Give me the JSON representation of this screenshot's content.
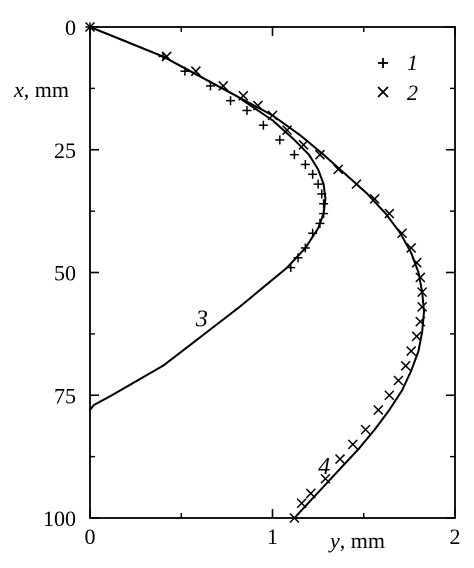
{
  "chart_data": {
    "type": "scatter",
    "x_axis": {
      "label_var": "y",
      "label_unit": ", mm",
      "range": [
        0,
        2
      ],
      "ticks": [
        "0",
        "1",
        "2"
      ],
      "tick_values": [
        0,
        1,
        2
      ]
    },
    "y_axis": {
      "label_var": "x",
      "label_unit": ", mm",
      "range": [
        0,
        100
      ],
      "inverted": true,
      "ticks": [
        "0",
        "25",
        "50",
        "75",
        "100"
      ],
      "tick_values": [
        0,
        25,
        50,
        75,
        100
      ]
    },
    "grid": false,
    "legend_position": "top-right",
    "legend": [
      {
        "marker": "+",
        "label": "1"
      },
      {
        "marker": "×",
        "label": "2"
      }
    ],
    "series": [
      {
        "name": "1",
        "kind": "markers",
        "marker": "+",
        "points": [
          [
            0.0,
            0
          ],
          [
            0.4,
            6
          ],
          [
            0.52,
            9
          ],
          [
            0.66,
            12
          ],
          [
            0.77,
            15
          ],
          [
            0.86,
            17
          ],
          [
            0.95,
            20
          ],
          [
            1.04,
            23
          ],
          [
            1.12,
            26
          ],
          [
            1.18,
            28
          ],
          [
            1.22,
            30
          ],
          [
            1.25,
            32
          ],
          [
            1.27,
            34
          ],
          [
            1.28,
            36
          ],
          [
            1.28,
            38
          ],
          [
            1.26,
            40
          ],
          [
            1.22,
            42
          ],
          [
            1.18,
            45
          ],
          [
            1.14,
            47
          ],
          [
            1.1,
            49
          ]
        ]
      },
      {
        "name": "2",
        "kind": "markers",
        "marker": "×",
        "points": [
          [
            0.0,
            0
          ],
          [
            0.42,
            6
          ],
          [
            0.58,
            9
          ],
          [
            0.73,
            12
          ],
          [
            0.84,
            14
          ],
          [
            0.92,
            16
          ],
          [
            1.0,
            18
          ],
          [
            1.08,
            21
          ],
          [
            1.17,
            24
          ],
          [
            1.26,
            26
          ],
          [
            1.36,
            29
          ],
          [
            1.46,
            32
          ],
          [
            1.56,
            35
          ],
          [
            1.64,
            38
          ],
          [
            1.71,
            42
          ],
          [
            1.76,
            45
          ],
          [
            1.79,
            48
          ],
          [
            1.81,
            51
          ],
          [
            1.82,
            54
          ],
          [
            1.82,
            57
          ],
          [
            1.81,
            60
          ],
          [
            1.79,
            63
          ],
          [
            1.76,
            66
          ],
          [
            1.73,
            69
          ],
          [
            1.69,
            72
          ],
          [
            1.64,
            75
          ],
          [
            1.58,
            78
          ],
          [
            1.51,
            82
          ],
          [
            1.44,
            85
          ],
          [
            1.37,
            88
          ],
          [
            1.29,
            92
          ],
          [
            1.21,
            95
          ],
          [
            1.16,
            97
          ],
          [
            1.12,
            100
          ]
        ]
      },
      {
        "name": "3",
        "kind": "line",
        "points": [
          [
            0.0,
            0
          ],
          [
            0.2,
            3
          ],
          [
            0.4,
            6
          ],
          [
            0.6,
            10
          ],
          [
            0.8,
            14
          ],
          [
            1.0,
            19
          ],
          [
            1.12,
            23
          ],
          [
            1.2,
            26
          ],
          [
            1.25,
            29
          ],
          [
            1.28,
            32
          ],
          [
            1.29,
            35
          ],
          [
            1.28,
            38
          ],
          [
            1.25,
            41
          ],
          [
            1.18,
            45
          ],
          [
            1.08,
            49
          ],
          [
            0.95,
            53
          ],
          [
            0.82,
            57
          ],
          [
            0.68,
            61
          ],
          [
            0.54,
            65
          ],
          [
            0.4,
            69
          ],
          [
            0.26,
            72
          ],
          [
            0.12,
            75
          ],
          [
            0.02,
            77
          ],
          [
            0.0,
            78
          ]
        ]
      },
      {
        "name": "4",
        "kind": "line",
        "points": [
          [
            0.0,
            0
          ],
          [
            0.2,
            3
          ],
          [
            0.4,
            6
          ],
          [
            0.6,
            10
          ],
          [
            0.8,
            14
          ],
          [
            1.0,
            18
          ],
          [
            1.15,
            22
          ],
          [
            1.28,
            26
          ],
          [
            1.4,
            30
          ],
          [
            1.52,
            34
          ],
          [
            1.62,
            38
          ],
          [
            1.7,
            42
          ],
          [
            1.76,
            46
          ],
          [
            1.8,
            50
          ],
          [
            1.82,
            54
          ],
          [
            1.83,
            58
          ],
          [
            1.82,
            62
          ],
          [
            1.8,
            66
          ],
          [
            1.76,
            70
          ],
          [
            1.71,
            74
          ],
          [
            1.64,
            78
          ],
          [
            1.56,
            82
          ],
          [
            1.47,
            86
          ],
          [
            1.37,
            90
          ],
          [
            1.27,
            94
          ],
          [
            1.17,
            98
          ],
          [
            1.12,
            100
          ]
        ]
      }
    ],
    "annotations": [
      {
        "text": "3",
        "x": 0.58,
        "y": 61
      },
      {
        "text": "4",
        "x": 1.25,
        "y": 91
      }
    ]
  }
}
